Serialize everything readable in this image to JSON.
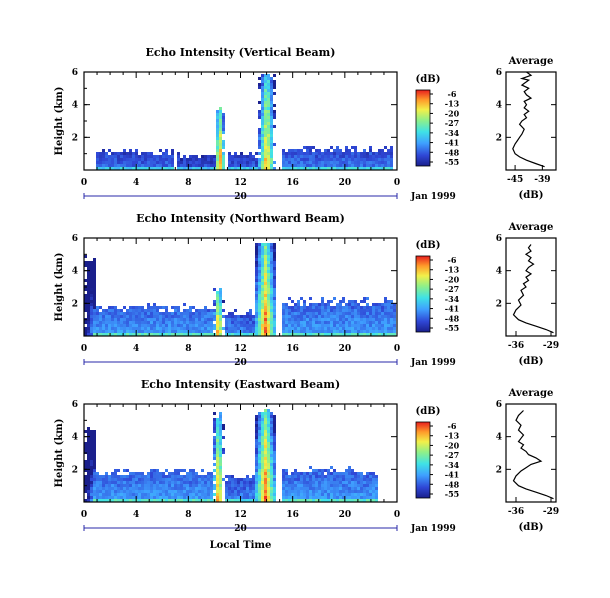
{
  "chart_data": [
    {
      "type": "heatmap",
      "title": "Echo Intensity (Vertical Beam)",
      "ylabel": "Height (km)",
      "x_ticks": [
        "0",
        "4",
        "8",
        "12",
        "16",
        "20",
        "0"
      ],
      "y_ticks": [
        "2",
        "4",
        "6"
      ],
      "xlim": [
        0,
        24
      ],
      "ylim": [
        0,
        6
      ],
      "date_label": "20",
      "date_suffix": "Jan 1999",
      "colorbar": {
        "unit": "(dB)",
        "ticks": [
          "-6",
          "-13",
          "-20",
          "-27",
          "-34",
          "-41",
          "-48",
          "-55"
        ]
      },
      "features": {
        "boundary_layer": [
          {
            "from": 0.8,
            "to": 6.8,
            "top": 1.2,
            "db": -44
          },
          {
            "from": 7.0,
            "to": 10.2,
            "top": 1.0,
            "db": -46
          },
          {
            "from": 11.0,
            "to": 13.2,
            "top": 1.1,
            "db": -45
          },
          {
            "from": 15.0,
            "to": 23.6,
            "top": 1.4,
            "db": -43
          }
        ],
        "columns": [
          {
            "center": 10.3,
            "half_width": 0.25,
            "top": 4.0,
            "peak_db": -8
          },
          {
            "center": 13.9,
            "half_width": 0.5,
            "top": 6.0,
            "peak_db": -10
          }
        ]
      },
      "average_profile": {
        "title": "Average",
        "xlabel": "(dB)",
        "x_ticks": [
          "-45",
          "-39"
        ],
        "y_ticks": [
          "2",
          "4",
          "6"
        ],
        "xlim": [
          -47,
          -36
        ],
        "ylim": [
          0,
          6
        ],
        "x": [
          -38.5,
          -40.5,
          -42.5,
          -44,
          -45,
          -45.5,
          -45,
          -44.5,
          -44,
          -43.5,
          -43,
          -44,
          -43.5,
          -42.5,
          -43,
          -42,
          -43,
          -42.5,
          -43,
          -41.5,
          -42.5,
          -43,
          -42,
          -43.5,
          -43,
          -42.5,
          -42,
          -43.5,
          -42.5,
          -41.5,
          -42.5
        ],
        "y": [
          0.2,
          0.4,
          0.6,
          0.8,
          1.0,
          1.3,
          1.6,
          1.8,
          2.0,
          2.2,
          2.5,
          2.8,
          3.0,
          3.2,
          3.4,
          3.6,
          3.8,
          4.0,
          4.2,
          4.4,
          4.6,
          4.8,
          5.0,
          5.2,
          5.3,
          5.4,
          5.5,
          5.6,
          5.7,
          5.8,
          6.0
        ]
      }
    },
    {
      "type": "heatmap",
      "title": "Echo Intensity (Northward Beam)",
      "ylabel": "Height (km)",
      "x_ticks": [
        "0",
        "4",
        "8",
        "12",
        "16",
        "20",
        "0"
      ],
      "y_ticks": [
        "2",
        "4",
        "6"
      ],
      "xlim": [
        0,
        24
      ],
      "ylim": [
        0,
        6
      ],
      "date_label": "20",
      "date_suffix": "Jan 1999",
      "colorbar": {
        "unit": "(dB)",
        "ticks": [
          "-6",
          "-13",
          "-20",
          "-27",
          "-34",
          "-41",
          "-48",
          "-55"
        ]
      },
      "features": {
        "boundary_layer": [
          {
            "from": 0.5,
            "to": 9.8,
            "top": 1.8,
            "db": -40
          },
          {
            "from": 10.8,
            "to": 13.0,
            "top": 1.5,
            "db": -42
          },
          {
            "from": 15.0,
            "to": 23.8,
            "top": 2.2,
            "db": -40
          }
        ],
        "columns": [
          {
            "center": 0.4,
            "half_width": 0.35,
            "top": 4.8,
            "peak_db": -40
          },
          {
            "center": 10.2,
            "half_width": 0.25,
            "top": 3.0,
            "peak_db": -8
          },
          {
            "center": 13.8,
            "half_width": 0.7,
            "top": 5.8,
            "peak_db": -8
          }
        ]
      },
      "average_profile": {
        "title": "Average",
        "xlabel": "(dB)",
        "x_ticks": [
          "-36",
          "-29"
        ],
        "y_ticks": [
          "2",
          "4",
          "6"
        ],
        "xlim": [
          -38,
          -28
        ],
        "ylim": [
          0,
          6
        ],
        "x": [
          -28.5,
          -30,
          -32,
          -34,
          -35.5,
          -36.5,
          -36,
          -35,
          -35.5,
          -34.5,
          -35,
          -34,
          -34.5,
          -33.5,
          -34,
          -33,
          -34,
          -33.5,
          -32.5,
          -33.5,
          -33,
          -34,
          -33,
          -33.5,
          -33
        ],
        "y": [
          0.2,
          0.4,
          0.6,
          0.8,
          1.0,
          1.3,
          1.6,
          1.9,
          2.2,
          2.5,
          2.8,
          3.0,
          3.2,
          3.4,
          3.6,
          3.8,
          4.0,
          4.2,
          4.4,
          4.6,
          4.8,
          5.0,
          5.2,
          5.4,
          5.6
        ]
      }
    },
    {
      "type": "heatmap",
      "title": "Echo Intensity (Eastward Beam)",
      "ylabel": "Height (km)",
      "x_ticks": [
        "0",
        "4",
        "8",
        "12",
        "16",
        "20",
        "0"
      ],
      "y_ticks": [
        "2",
        "4",
        "6"
      ],
      "xlim": [
        0,
        24
      ],
      "ylim": [
        0,
        6
      ],
      "date_label": "20",
      "date_suffix": "Jan 1999",
      "xlabel": "Local Time",
      "colorbar": {
        "unit": "(dB)",
        "ticks": [
          "-6",
          "-13",
          "-20",
          "-27",
          "-34",
          "-41",
          "-48",
          "-55"
        ]
      },
      "features": {
        "boundary_layer": [
          {
            "from": 0.5,
            "to": 9.8,
            "top": 1.9,
            "db": -40
          },
          {
            "from": 10.8,
            "to": 13.0,
            "top": 1.6,
            "db": -42
          },
          {
            "from": 15.0,
            "to": 22.5,
            "top": 2.0,
            "db": -40
          }
        ],
        "columns": [
          {
            "center": 0.4,
            "half_width": 0.35,
            "top": 4.5,
            "peak_db": -40
          },
          {
            "center": 10.2,
            "half_width": 0.25,
            "top": 5.4,
            "peak_db": -8
          },
          {
            "center": 13.8,
            "half_width": 0.7,
            "top": 5.6,
            "peak_db": -8
          }
        ]
      },
      "average_profile": {
        "title": "Average",
        "xlabel": "(dB)",
        "x_ticks": [
          "-36",
          "-29"
        ],
        "y_ticks": [
          "2",
          "4",
          "6"
        ],
        "xlim": [
          -38,
          -28
        ],
        "ylim": [
          0,
          6
        ],
        "x": [
          -28.5,
          -30,
          -32,
          -34,
          -35.5,
          -36.5,
          -36,
          -35,
          -34,
          -33,
          -31,
          -32,
          -33.5,
          -34,
          -35,
          -34.5,
          -35.5,
          -35,
          -34.5,
          -35.5,
          -35,
          -36,
          -35.5,
          -34.5
        ],
        "y": [
          0.2,
          0.4,
          0.6,
          0.8,
          1.0,
          1.3,
          1.6,
          1.9,
          2.1,
          2.3,
          2.5,
          2.7,
          2.9,
          3.1,
          3.3,
          3.5,
          3.7,
          3.9,
          4.1,
          4.4,
          4.7,
          5.0,
          5.3,
          5.6
        ]
      }
    }
  ]
}
